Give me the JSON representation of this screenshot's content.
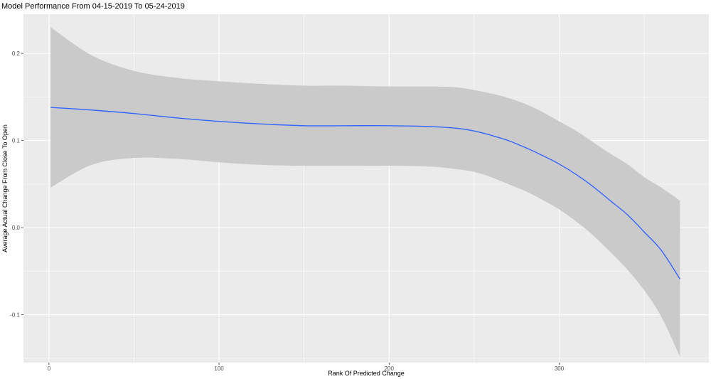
{
  "chart_data": {
    "type": "line",
    "title": "Model Performance From 04-15-2019 To 05-24-2019",
    "xlabel": "Rank Of Predicted Change",
    "ylabel": "Average Actual Change From Close To Open",
    "xlim": [
      -15,
      388
    ],
    "ylim": [
      -0.155,
      0.245
    ],
    "x_ticks": [
      0,
      100,
      200,
      300
    ],
    "y_ticks": [
      -0.1,
      0.0,
      0.1,
      0.2
    ],
    "x_tick_labels": [
      "0",
      "100",
      "200",
      "300"
    ],
    "y_tick_labels": [
      "-0.1",
      "0.0",
      "0.1",
      "0.2"
    ],
    "grid": true,
    "colors": {
      "panel": "#ebebeb",
      "grid": "#ffffff",
      "line": "#3366ff",
      "band": "#c8c8c8"
    },
    "series": [
      {
        "style": "smooth-fit",
        "x": [
          1,
          25,
          50,
          75,
          100,
          125,
          150,
          175,
          200,
          225,
          240,
          250,
          260,
          270,
          280,
          290,
          300,
          310,
          320,
          330,
          340,
          350,
          360,
          371
        ],
        "y": [
          0.138,
          0.135,
          0.131,
          0.126,
          0.122,
          0.119,
          0.117,
          0.117,
          0.117,
          0.116,
          0.114,
          0.111,
          0.106,
          0.1,
          0.092,
          0.083,
          0.073,
          0.061,
          0.047,
          0.031,
          0.015,
          -0.005,
          -0.026,
          -0.059
        ],
        "lower": [
          0.046,
          0.072,
          0.08,
          0.079,
          0.075,
          0.072,
          0.071,
          0.071,
          0.071,
          0.07,
          0.067,
          0.064,
          0.058,
          0.05,
          0.042,
          0.032,
          0.021,
          0.007,
          -0.009,
          -0.028,
          -0.048,
          -0.072,
          -0.102,
          -0.148
        ],
        "upper": [
          0.23,
          0.198,
          0.18,
          0.172,
          0.168,
          0.165,
          0.163,
          0.163,
          0.162,
          0.162,
          0.161,
          0.158,
          0.154,
          0.149,
          0.142,
          0.133,
          0.122,
          0.111,
          0.098,
          0.085,
          0.073,
          0.058,
          0.046,
          0.031
        ]
      }
    ]
  }
}
